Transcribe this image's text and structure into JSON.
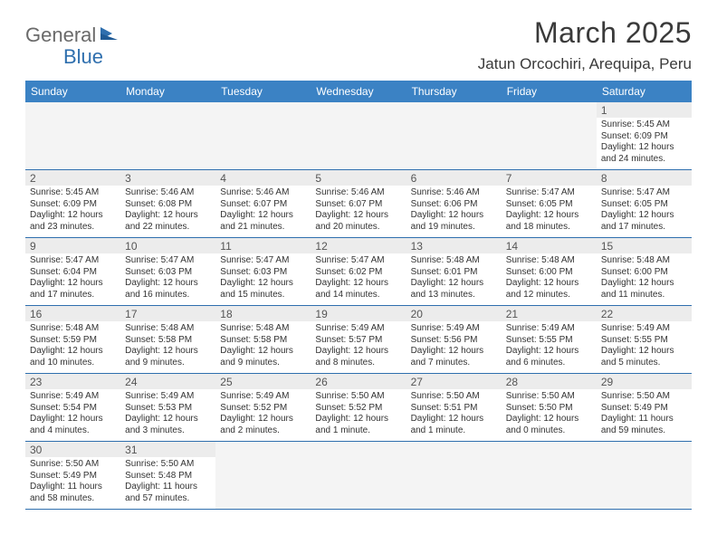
{
  "header": {
    "logo_part1": "General",
    "logo_part2": "Blue",
    "month_title": "March 2025",
    "location": "Jatun Orcochiri, Arequipa, Peru"
  },
  "colors": {
    "header_bg": "#3b82c4",
    "header_text": "#ffffff",
    "border": "#2f6fae",
    "daynum_bg": "#ececec",
    "logo_gray": "#6a6a6a",
    "logo_blue": "#2f6fae"
  },
  "daynames": [
    "Sunday",
    "Monday",
    "Tuesday",
    "Wednesday",
    "Thursday",
    "Friday",
    "Saturday"
  ],
  "weeks": [
    [
      null,
      null,
      null,
      null,
      null,
      null,
      {
        "n": "1",
        "sr": "Sunrise: 5:45 AM",
        "ss": "Sunset: 6:09 PM",
        "dl": "Daylight: 12 hours and 24 minutes."
      }
    ],
    [
      {
        "n": "2",
        "sr": "Sunrise: 5:45 AM",
        "ss": "Sunset: 6:09 PM",
        "dl": "Daylight: 12 hours and 23 minutes."
      },
      {
        "n": "3",
        "sr": "Sunrise: 5:46 AM",
        "ss": "Sunset: 6:08 PM",
        "dl": "Daylight: 12 hours and 22 minutes."
      },
      {
        "n": "4",
        "sr": "Sunrise: 5:46 AM",
        "ss": "Sunset: 6:07 PM",
        "dl": "Daylight: 12 hours and 21 minutes."
      },
      {
        "n": "5",
        "sr": "Sunrise: 5:46 AM",
        "ss": "Sunset: 6:07 PM",
        "dl": "Daylight: 12 hours and 20 minutes."
      },
      {
        "n": "6",
        "sr": "Sunrise: 5:46 AM",
        "ss": "Sunset: 6:06 PM",
        "dl": "Daylight: 12 hours and 19 minutes."
      },
      {
        "n": "7",
        "sr": "Sunrise: 5:47 AM",
        "ss": "Sunset: 6:05 PM",
        "dl": "Daylight: 12 hours and 18 minutes."
      },
      {
        "n": "8",
        "sr": "Sunrise: 5:47 AM",
        "ss": "Sunset: 6:05 PM",
        "dl": "Daylight: 12 hours and 17 minutes."
      }
    ],
    [
      {
        "n": "9",
        "sr": "Sunrise: 5:47 AM",
        "ss": "Sunset: 6:04 PM",
        "dl": "Daylight: 12 hours and 17 minutes."
      },
      {
        "n": "10",
        "sr": "Sunrise: 5:47 AM",
        "ss": "Sunset: 6:03 PM",
        "dl": "Daylight: 12 hours and 16 minutes."
      },
      {
        "n": "11",
        "sr": "Sunrise: 5:47 AM",
        "ss": "Sunset: 6:03 PM",
        "dl": "Daylight: 12 hours and 15 minutes."
      },
      {
        "n": "12",
        "sr": "Sunrise: 5:47 AM",
        "ss": "Sunset: 6:02 PM",
        "dl": "Daylight: 12 hours and 14 minutes."
      },
      {
        "n": "13",
        "sr": "Sunrise: 5:48 AM",
        "ss": "Sunset: 6:01 PM",
        "dl": "Daylight: 12 hours and 13 minutes."
      },
      {
        "n": "14",
        "sr": "Sunrise: 5:48 AM",
        "ss": "Sunset: 6:00 PM",
        "dl": "Daylight: 12 hours and 12 minutes."
      },
      {
        "n": "15",
        "sr": "Sunrise: 5:48 AM",
        "ss": "Sunset: 6:00 PM",
        "dl": "Daylight: 12 hours and 11 minutes."
      }
    ],
    [
      {
        "n": "16",
        "sr": "Sunrise: 5:48 AM",
        "ss": "Sunset: 5:59 PM",
        "dl": "Daylight: 12 hours and 10 minutes."
      },
      {
        "n": "17",
        "sr": "Sunrise: 5:48 AM",
        "ss": "Sunset: 5:58 PM",
        "dl": "Daylight: 12 hours and 9 minutes."
      },
      {
        "n": "18",
        "sr": "Sunrise: 5:48 AM",
        "ss": "Sunset: 5:58 PM",
        "dl": "Daylight: 12 hours and 9 minutes."
      },
      {
        "n": "19",
        "sr": "Sunrise: 5:49 AM",
        "ss": "Sunset: 5:57 PM",
        "dl": "Daylight: 12 hours and 8 minutes."
      },
      {
        "n": "20",
        "sr": "Sunrise: 5:49 AM",
        "ss": "Sunset: 5:56 PM",
        "dl": "Daylight: 12 hours and 7 minutes."
      },
      {
        "n": "21",
        "sr": "Sunrise: 5:49 AM",
        "ss": "Sunset: 5:55 PM",
        "dl": "Daylight: 12 hours and 6 minutes."
      },
      {
        "n": "22",
        "sr": "Sunrise: 5:49 AM",
        "ss": "Sunset: 5:55 PM",
        "dl": "Daylight: 12 hours and 5 minutes."
      }
    ],
    [
      {
        "n": "23",
        "sr": "Sunrise: 5:49 AM",
        "ss": "Sunset: 5:54 PM",
        "dl": "Daylight: 12 hours and 4 minutes."
      },
      {
        "n": "24",
        "sr": "Sunrise: 5:49 AM",
        "ss": "Sunset: 5:53 PM",
        "dl": "Daylight: 12 hours and 3 minutes."
      },
      {
        "n": "25",
        "sr": "Sunrise: 5:49 AM",
        "ss": "Sunset: 5:52 PM",
        "dl": "Daylight: 12 hours and 2 minutes."
      },
      {
        "n": "26",
        "sr": "Sunrise: 5:50 AM",
        "ss": "Sunset: 5:52 PM",
        "dl": "Daylight: 12 hours and 1 minute."
      },
      {
        "n": "27",
        "sr": "Sunrise: 5:50 AM",
        "ss": "Sunset: 5:51 PM",
        "dl": "Daylight: 12 hours and 1 minute."
      },
      {
        "n": "28",
        "sr": "Sunrise: 5:50 AM",
        "ss": "Sunset: 5:50 PM",
        "dl": "Daylight: 12 hours and 0 minutes."
      },
      {
        "n": "29",
        "sr": "Sunrise: 5:50 AM",
        "ss": "Sunset: 5:49 PM",
        "dl": "Daylight: 11 hours and 59 minutes."
      }
    ],
    [
      {
        "n": "30",
        "sr": "Sunrise: 5:50 AM",
        "ss": "Sunset: 5:49 PM",
        "dl": "Daylight: 11 hours and 58 minutes."
      },
      {
        "n": "31",
        "sr": "Sunrise: 5:50 AM",
        "ss": "Sunset: 5:48 PM",
        "dl": "Daylight: 11 hours and 57 minutes."
      },
      null,
      null,
      null,
      null,
      null
    ]
  ]
}
